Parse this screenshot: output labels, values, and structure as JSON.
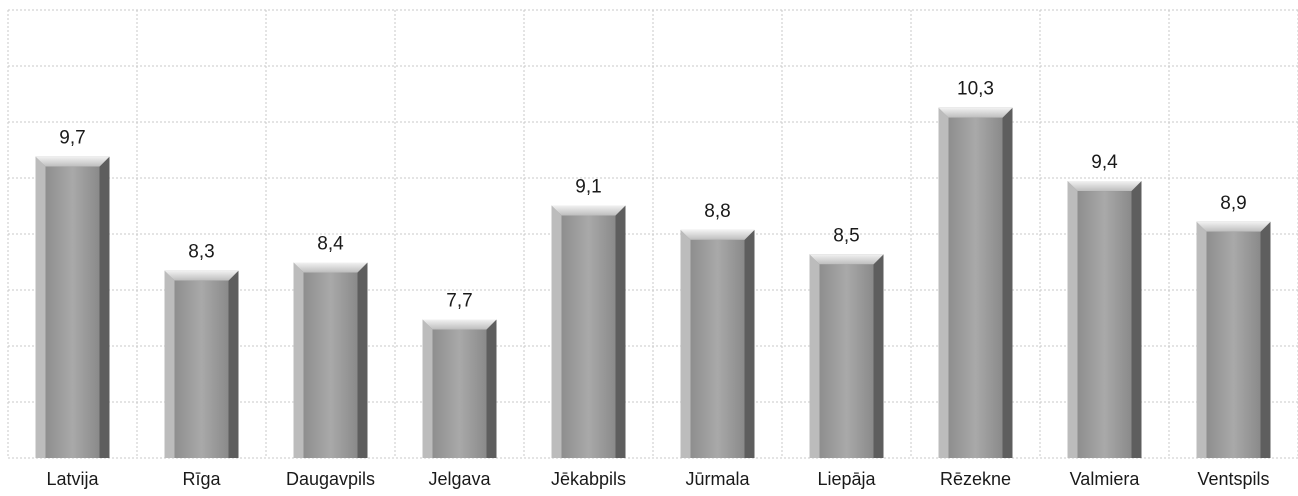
{
  "chart_data": {
    "type": "bar",
    "title": "",
    "xlabel": "",
    "ylabel": "",
    "categories": [
      "Latvija",
      "Rīga",
      "Daugavpils",
      "Jelgava",
      "Jēkabpils",
      "Jūrmala",
      "Liepāja",
      "Rēzekne",
      "Valmiera",
      "Ventspils"
    ],
    "values": [
      9.7,
      8.3,
      8.4,
      7.7,
      9.1,
      8.8,
      8.5,
      10.3,
      9.4,
      8.9
    ],
    "data_labels": [
      "9,7",
      "8,3",
      "8,4",
      "7,7",
      "9,1",
      "8,8",
      "8,5",
      "10,3",
      "9,4",
      "8,9"
    ],
    "ylim": [
      6,
      11.5
    ],
    "grid": true,
    "bar_color": "#9a9a9a"
  }
}
